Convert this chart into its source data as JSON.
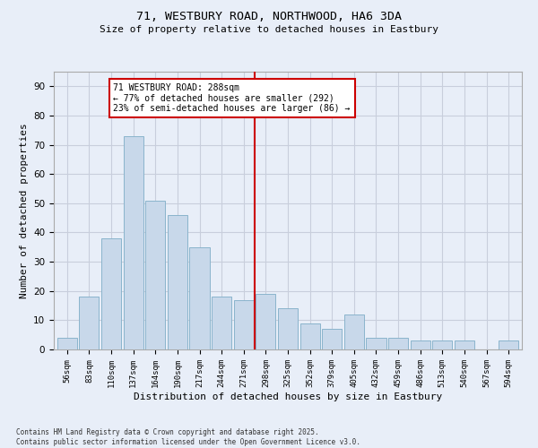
{
  "title_line1": "71, WESTBURY ROAD, NORTHWOOD, HA6 3DA",
  "title_line2": "Size of property relative to detached houses in Eastbury",
  "xlabel": "Distribution of detached houses by size in Eastbury",
  "ylabel": "Number of detached properties",
  "categories": [
    "56sqm",
    "83sqm",
    "110sqm",
    "137sqm",
    "164sqm",
    "190sqm",
    "217sqm",
    "244sqm",
    "271sqm",
    "298sqm",
    "325sqm",
    "352sqm",
    "379sqm",
    "405sqm",
    "432sqm",
    "459sqm",
    "486sqm",
    "513sqm",
    "540sqm",
    "567sqm",
    "594sqm"
  ],
  "values": [
    4,
    18,
    38,
    73,
    51,
    46,
    35,
    18,
    17,
    19,
    14,
    9,
    7,
    12,
    4,
    4,
    3,
    3,
    3,
    0,
    3
  ],
  "bar_color": "#c8d8ea",
  "bar_edge_color": "#8ab4cc",
  "red_line_index": 9,
  "annotation_title": "71 WESTBURY ROAD: 288sqm",
  "annotation_line2": "← 77% of detached houses are smaller (292)",
  "annotation_line3": "23% of semi-detached houses are larger (86) →",
  "annotation_box_facecolor": "#ffffff",
  "annotation_box_edgecolor": "#cc0000",
  "red_line_color": "#cc0000",
  "ylim": [
    0,
    95
  ],
  "yticks": [
    0,
    10,
    20,
    30,
    40,
    50,
    60,
    70,
    80,
    90
  ],
  "background_color": "#e8eef8",
  "grid_color": "#c8cedc",
  "footer_line1": "Contains HM Land Registry data © Crown copyright and database right 2025.",
  "footer_line2": "Contains public sector information licensed under the Open Government Licence v3.0."
}
